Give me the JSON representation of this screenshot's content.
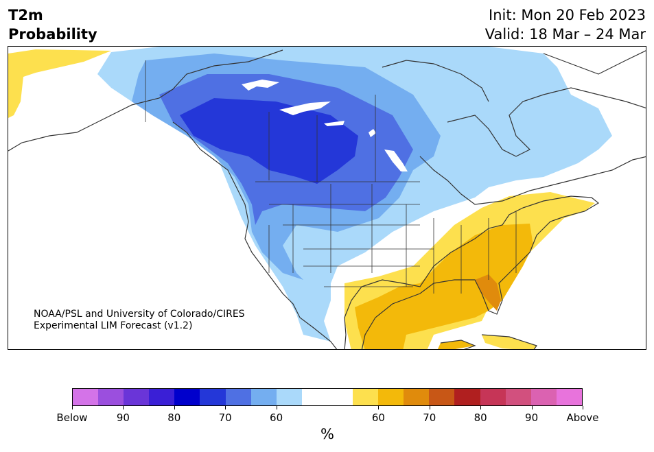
{
  "header": {
    "title_line1": "T2m",
    "title_line2": "Probability",
    "init_line": "Init: Mon 20 Feb 2023",
    "valid_line": "Valid: 18 Mar – 24 Mar"
  },
  "credit": {
    "line1": "NOAA/PSL and University of Colorado/CIRES",
    "line2": "Experimental LIM Forecast (v1.2)"
  },
  "colors": {
    "below": [
      "#d473e8",
      "#9b4fde",
      "#6a35d8",
      "#3a1fd6",
      "#0000cc",
      "#2437d8",
      "#4f70e3",
      "#74aef0",
      "#aad9fa"
    ],
    "neutral": "#ffffff",
    "above": [
      "#fde04e",
      "#f3b90a",
      "#e08b0c",
      "#c85716",
      "#b01f1f",
      "#c63557",
      "#d2507e",
      "#db62b1",
      "#e873dc"
    ],
    "land_outline": "#333333",
    "lakes": "#ffffff"
  },
  "colorbar": {
    "labels": [
      "Below",
      "90",
      "80",
      "70",
      "60",
      "60",
      "70",
      "80",
      "90",
      "Above"
    ],
    "units": "%"
  }
}
